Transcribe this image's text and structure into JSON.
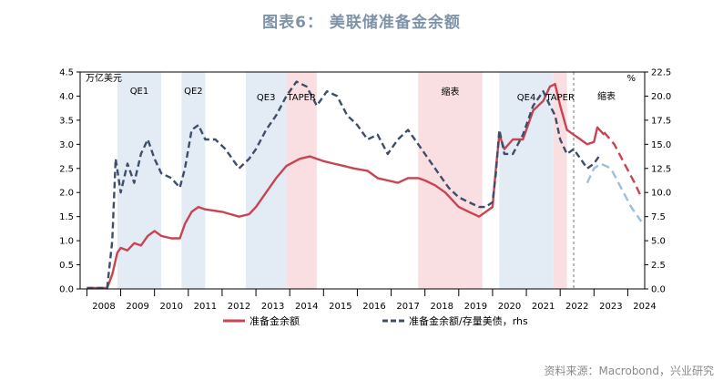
{
  "figure_title": "图表6： 美联储准备金余额",
  "source": "资料来源：Macrobond，兴业研究",
  "chart_data": {
    "type": "line",
    "y_left_unit": "万亿美元",
    "y_right_unit": "%",
    "x_range": [
      2007.8,
      2024.5
    ],
    "y_left_range": [
      0,
      4.5
    ],
    "y_right_range": [
      0,
      22.5
    ],
    "y_left_ticks": [
      "0.0",
      "0.5",
      "1.0",
      "1.5",
      "2.0",
      "2.5",
      "3.0",
      "3.5",
      "4.0",
      "4.5"
    ],
    "y_right_ticks": [
      "0.0",
      "2.5",
      "5.0",
      "7.5",
      "10.0",
      "12.5",
      "15.0",
      "17.5",
      "20.0",
      "22.5"
    ],
    "x_ticks": [
      "2008",
      "2009",
      "2010",
      "2011",
      "2012",
      "2013",
      "2014",
      "2015",
      "2016",
      "2017",
      "2018",
      "2019",
      "2020",
      "2021",
      "2022",
      "2023",
      "2024"
    ],
    "periods": [
      {
        "label": "QE1",
        "start": 2008.9,
        "end": 2010.2,
        "kind": "easing"
      },
      {
        "label": "QE2",
        "start": 2010.8,
        "end": 2011.5,
        "kind": "easing"
      },
      {
        "label": "QE3",
        "start": 2012.7,
        "end": 2013.9,
        "kind": "easing"
      },
      {
        "label": "TAPER",
        "start": 2013.9,
        "end": 2014.8,
        "kind": "tightening"
      },
      {
        "label": "缩表",
        "start": 2017.8,
        "end": 2019.7,
        "kind": "tightening"
      },
      {
        "label": "QE4",
        "start": 2020.2,
        "end": 2021.8,
        "kind": "easing"
      },
      {
        "label": "TAPER",
        "start": 2021.8,
        "end": 2022.2,
        "kind": "tightening"
      },
      {
        "label": "缩表",
        "start": 2022.4,
        "end": null,
        "kind": "label-only"
      }
    ],
    "forecast_divider_x": 2022.4,
    "series": [
      {
        "name": "准备金余额",
        "axis": "left",
        "color": "#c94352",
        "style": "solid",
        "x": [
          2008.0,
          2008.6,
          2008.75,
          2008.9,
          2009.0,
          2009.2,
          2009.4,
          2009.6,
          2009.8,
          2010.0,
          2010.2,
          2010.5,
          2010.75,
          2010.9,
          2011.1,
          2011.3,
          2011.5,
          2012.0,
          2012.5,
          2012.8,
          2013.0,
          2013.3,
          2013.6,
          2013.9,
          2014.3,
          2014.6,
          2014.8,
          2015.0,
          2015.3,
          2015.6,
          2015.9,
          2016.3,
          2016.6,
          2016.9,
          2017.2,
          2017.5,
          2017.8,
          2018.0,
          2018.3,
          2018.6,
          2019.0,
          2019.3,
          2019.6,
          2019.8,
          2020.0,
          2020.1,
          2020.2,
          2020.35,
          2020.6,
          2020.9,
          2021.2,
          2021.5,
          2021.7,
          2021.85,
          2022.0,
          2022.2,
          2022.4,
          2022.6,
          2022.8,
          2023.0,
          2023.1,
          2023.3
        ],
        "y": [
          0.02,
          0.02,
          0.3,
          0.75,
          0.85,
          0.8,
          0.95,
          0.9,
          1.1,
          1.2,
          1.1,
          1.05,
          1.05,
          1.35,
          1.6,
          1.7,
          1.65,
          1.6,
          1.5,
          1.55,
          1.7,
          2.0,
          2.3,
          2.55,
          2.7,
          2.75,
          2.7,
          2.65,
          2.6,
          2.55,
          2.5,
          2.45,
          2.3,
          2.25,
          2.2,
          2.3,
          2.3,
          2.25,
          2.15,
          2.0,
          1.7,
          1.6,
          1.5,
          1.6,
          1.7,
          2.5,
          3.2,
          2.9,
          3.1,
          3.1,
          3.7,
          3.9,
          4.2,
          4.25,
          3.8,
          3.3,
          3.2,
          3.1,
          3.0,
          3.05,
          3.35,
          3.2
        ]
      },
      {
        "name": "准备金余额/存量美债，rhs",
        "axis": "right",
        "color": "#3d4e6b",
        "style": "dashed",
        "x": [
          2008.0,
          2008.6,
          2008.75,
          2008.85,
          2009.0,
          2009.2,
          2009.4,
          2009.6,
          2009.8,
          2010.0,
          2010.2,
          2010.5,
          2010.75,
          2010.9,
          2011.1,
          2011.3,
          2011.5,
          2011.8,
          2012.1,
          2012.5,
          2012.8,
          2013.0,
          2013.3,
          2013.6,
          2013.9,
          2014.2,
          2014.5,
          2014.8,
          2015.1,
          2015.4,
          2015.7,
          2016.0,
          2016.3,
          2016.6,
          2016.9,
          2017.2,
          2017.5,
          2017.8,
          2018.1,
          2018.4,
          2018.7,
          2019.0,
          2019.3,
          2019.6,
          2019.8,
          2020.0,
          2020.1,
          2020.2,
          2020.35,
          2020.6,
          2020.9,
          2021.2,
          2021.5,
          2021.7,
          2021.85,
          2022.0,
          2022.2,
          2022.4,
          2022.6,
          2022.8,
          2023.0,
          2023.2
        ],
        "y": [
          0.1,
          0.1,
          5.0,
          13.5,
          10.0,
          13.0,
          11.0,
          14.0,
          15.5,
          13.5,
          12.0,
          11.5,
          10.5,
          12.5,
          16.5,
          17.0,
          15.5,
          15.5,
          14.5,
          12.5,
          13.5,
          14.5,
          16.5,
          18.0,
          20.0,
          21.5,
          21.0,
          19.0,
          20.5,
          20.0,
          18.0,
          17.0,
          15.5,
          16.0,
          14.0,
          15.5,
          16.5,
          15.0,
          13.5,
          12.0,
          10.5,
          9.5,
          9.0,
          8.5,
          8.5,
          9.0,
          12.0,
          16.5,
          14.0,
          14.0,
          16.0,
          19.0,
          20.5,
          19.0,
          18.0,
          15.5,
          14.0,
          14.5,
          13.5,
          12.5,
          13.0,
          14.0
        ]
      },
      {
        "name": "准备金余额 forecast",
        "axis": "left",
        "color": "#c94352",
        "style": "dashed-forecast",
        "x": [
          2023.3,
          2023.6,
          2023.9,
          2024.2,
          2024.4
        ],
        "y": [
          3.25,
          3.0,
          2.6,
          2.2,
          1.9
        ]
      },
      {
        "name": "准备金余额/存量美债 forecast",
        "axis": "right",
        "color": "#9cc0dc",
        "style": "dashed-forecast",
        "x": [
          2022.8,
          2023.0,
          2023.2,
          2023.5,
          2023.8,
          2024.1,
          2024.4
        ],
        "y": [
          11.0,
          12.5,
          13.0,
          12.5,
          10.5,
          8.5,
          7.0
        ]
      }
    ]
  }
}
